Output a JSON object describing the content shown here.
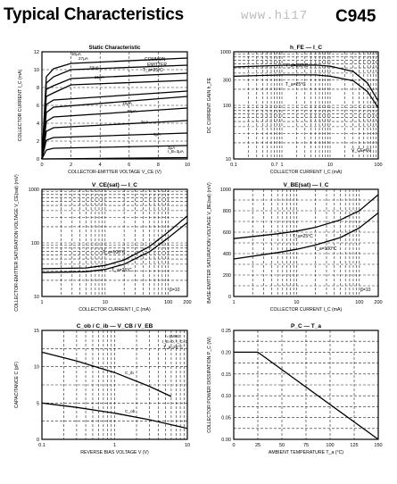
{
  "header": {
    "title": "Typical Characteristics",
    "part": "C945",
    "watermark": "www.hi17"
  },
  "chart_data": [
    {
      "id": "static",
      "type": "line",
      "title": "Static Characteristic",
      "xlabel": "COLLECTOR-EMITTER VOLTAGE  V_CE (V)",
      "ylabel": "COLLECTOR CURRENT  I_C (mA)",
      "xlim": [
        0,
        10
      ],
      "ylim": [
        0,
        12
      ],
      "xscale": "linear",
      "yscale": "linear",
      "xticks": [
        "0",
        "2",
        "4",
        "6",
        "8",
        "10"
      ],
      "yticks": [
        "0",
        "2",
        "4",
        "6",
        "8",
        "10",
        "12"
      ],
      "grid": true,
      "annotations": [
        "COMMON",
        "EMITTER",
        "T_a=25°C"
      ],
      "series": [
        {
          "name": "I_B=0",
          "label": "",
          "values": [
            [
              0,
              0
            ],
            [
              10,
              0.15
            ]
          ]
        },
        {
          "name": "3μA",
          "label": "3μA",
          "values": [
            [
              0,
              0
            ],
            [
              0.3,
              1.0
            ],
            [
              0.8,
              1.2
            ],
            [
              10,
              1.5
            ]
          ]
        },
        {
          "name": "6μA",
          "label": "6μA",
          "values": [
            [
              0,
              0
            ],
            [
              0.3,
              2.1
            ],
            [
              0.8,
              2.4
            ],
            [
              10,
              2.9
            ]
          ]
        },
        {
          "name": "9μA",
          "label": "9μA",
          "values": [
            [
              0,
              0
            ],
            [
              0.3,
              3.1
            ],
            [
              0.8,
              3.5
            ],
            [
              10,
              4.3
            ]
          ]
        },
        {
          "name": "12μA",
          "label": "12μA",
          "values": [
            [
              0,
              0
            ],
            [
              0.3,
              4.2
            ],
            [
              0.8,
              4.7
            ],
            [
              10,
              5.7
            ]
          ]
        },
        {
          "name": "15μA",
          "label": "15μA",
          "values": [
            [
              0,
              0
            ],
            [
              0.3,
              5.2
            ],
            [
              0.8,
              5.8
            ],
            [
              10,
              7.0
            ]
          ]
        },
        {
          "name": "18μA",
          "label": "",
          "values": [
            [
              0,
              0
            ],
            [
              0.3,
              6.1
            ],
            [
              0.8,
              6.6
            ],
            [
              10,
              7.6
            ]
          ]
        },
        {
          "name": "21μA",
          "label": "21μA",
          "values": [
            [
              0,
              0
            ],
            [
              0.3,
              7.0
            ],
            [
              0.8,
              7.4
            ],
            [
              2.0,
              8.3
            ],
            [
              10,
              8.8
            ]
          ]
        },
        {
          "name": "24μA",
          "label": "24μA",
          "values": [
            [
              0,
              0
            ],
            [
              0.3,
              7.8
            ],
            [
              0.8,
              8.2
            ],
            [
              2.0,
              9.0
            ],
            [
              10,
              9.6
            ]
          ]
        },
        {
          "name": "27μA",
          "label": "27μA",
          "values": [
            [
              0,
              0
            ],
            [
              0.3,
              8.5
            ],
            [
              0.8,
              9.2
            ],
            [
              2.0,
              10.0
            ],
            [
              10,
              10.5
            ]
          ]
        },
        {
          "name": "30μA",
          "label": "30μA",
          "values": [
            [
              0,
              0
            ],
            [
              0.3,
              9.2
            ],
            [
              0.8,
              10.1
            ],
            [
              2.0,
              10.7
            ],
            [
              10,
              11.3
            ]
          ]
        }
      ],
      "ib_label": "I_B=3μA"
    },
    {
      "id": "hfe",
      "type": "line",
      "title": "h_FE — I_C",
      "xlabel": "COLLECTOR CURRENT  I_C (mA)",
      "ylabel": "DC CURRENT GAIN  h_FE",
      "xlim": [
        0.1,
        100
      ],
      "ylim": [
        10,
        1000
      ],
      "xscale": "log",
      "yscale": "log",
      "xticks": [
        {
          "v": 0.1,
          "l": "0.1"
        },
        {
          "v": 0.7,
          "l": "0.7"
        },
        {
          "v": 1,
          "l": "1"
        },
        {
          "v": 10,
          "l": "10"
        },
        {
          "v": 100,
          "l": "100"
        }
      ],
      "yticks": [
        {
          "v": 10,
          "l": "10"
        },
        {
          "v": 100,
          "l": "100"
        },
        {
          "v": 300,
          "l": "300"
        },
        {
          "v": 1000,
          "l": "1000"
        }
      ],
      "annotations": [
        "T_a=100°C",
        "T_a=25°C",
        "V_CE=6V"
      ],
      "series": [
        {
          "name": "T_a=100°C",
          "values": [
            [
              0.1,
              520
            ],
            [
              1,
              560
            ],
            [
              5,
              565
            ],
            [
              10,
              540
            ],
            [
              30,
              430
            ],
            [
              60,
              260
            ],
            [
              100,
              120
            ]
          ]
        },
        {
          "name": "T_a=25°C",
          "values": [
            [
              0.1,
              350
            ],
            [
              1,
              370
            ],
            [
              5,
              370
            ],
            [
              10,
              350
            ],
            [
              30,
              290
            ],
            [
              60,
              180
            ],
            [
              100,
              90
            ]
          ]
        }
      ]
    },
    {
      "id": "vcesat",
      "type": "line",
      "title": "V_CE(sat) — I_C",
      "xlabel": "COLLECTOR CURRENT  I_C (mA)",
      "ylabel": "COLLECTOR-EMITTER SATURATION VOLTAGE  V_CE(sat) (mV)",
      "xlim": [
        1,
        200
      ],
      "ylim": [
        10,
        1000
      ],
      "xscale": "log",
      "yscale": "log",
      "xticks": [
        {
          "v": 1,
          "l": "1"
        },
        {
          "v": 10,
          "l": "10"
        },
        {
          "v": 100,
          "l": "100"
        },
        {
          "v": 200,
          "l": "200"
        }
      ],
      "yticks": [
        {
          "v": 10,
          "l": "10"
        },
        {
          "v": 100,
          "l": "100"
        },
        {
          "v": 1000,
          "l": "1000"
        }
      ],
      "annotations": [
        "T_a=100°C",
        "T_a=25°C",
        "β=10"
      ],
      "series": [
        {
          "name": "T_a=100°C",
          "values": [
            [
              1,
              33
            ],
            [
              5,
              34
            ],
            [
              10,
              38
            ],
            [
              20,
              48
            ],
            [
              50,
              85
            ],
            [
              100,
              160
            ],
            [
              200,
              320
            ]
          ]
        },
        {
          "name": "T_a=25°C",
          "values": [
            [
              1,
              28
            ],
            [
              5,
              29
            ],
            [
              10,
              32
            ],
            [
              20,
              40
            ],
            [
              50,
              68
            ],
            [
              100,
              125
            ],
            [
              200,
              240
            ]
          ]
        }
      ]
    },
    {
      "id": "vbesat",
      "type": "line",
      "title": "V_BE(sat) — I_C",
      "xlabel": "COLLECTOR CURRENT  I_C (mA)",
      "ylabel": "BASE-EMITTER SATURATION VOLTAGE  V_BE(sat) (mV)",
      "xlim": [
        1,
        200
      ],
      "ylim": [
        0,
        1000
      ],
      "xscale": "log",
      "yscale": "linear",
      "xticks": [
        {
          "v": 1,
          "l": "1"
        },
        {
          "v": 10,
          "l": "10"
        },
        {
          "v": 100,
          "l": "100"
        },
        {
          "v": 200,
          "l": "200"
        }
      ],
      "yticks": [
        {
          "v": 0,
          "l": "0"
        },
        {
          "v": 200,
          "l": "200"
        },
        {
          "v": 400,
          "l": "400"
        },
        {
          "v": 600,
          "l": "600"
        },
        {
          "v": 800,
          "l": "800"
        },
        {
          "v": 1000,
          "l": "1000"
        }
      ],
      "annotations": [
        "T_a=25°C",
        "T_a=100°C",
        "β=10"
      ],
      "series": [
        {
          "name": "T_a=25°C",
          "values": [
            [
              1,
              540
            ],
            [
              5,
              585
            ],
            [
              10,
              610
            ],
            [
              20,
              645
            ],
            [
              50,
              715
            ],
            [
              100,
              800
            ],
            [
              200,
              950
            ]
          ]
        },
        {
          "name": "T_a=100°C",
          "values": [
            [
              1,
              350
            ],
            [
              5,
              410
            ],
            [
              10,
              440
            ],
            [
              20,
              480
            ],
            [
              50,
              550
            ],
            [
              100,
              640
            ],
            [
              200,
              780
            ]
          ]
        }
      ]
    },
    {
      "id": "cap",
      "type": "line",
      "title": "C_ob / C_ib — V_CB / V_EB",
      "xlabel": "REVERSE BIAS VOLTAGE  V (V)",
      "ylabel": "CAPACITANCE  C (pF)",
      "xlim": [
        0.1,
        10
      ],
      "ylim": [
        0,
        15
      ],
      "xscale": "log",
      "yscale": "linear",
      "xticks": [
        {
          "v": 0.1,
          "l": "0.1"
        },
        {
          "v": 1,
          "l": "1"
        },
        {
          "v": 10,
          "l": "10"
        }
      ],
      "yticks": [
        {
          "v": 0,
          "l": "0"
        },
        {
          "v": 5,
          "l": "5"
        },
        {
          "v": 10,
          "l": "10"
        },
        {
          "v": 15,
          "l": "15"
        }
      ],
      "annotations": [
        "f=1MHz",
        "I_E=0, I_C=0",
        "T_a=25°C"
      ],
      "series": [
        {
          "name": "C_ib",
          "values": [
            [
              0.1,
              12.0
            ],
            [
              0.3,
              10.8
            ],
            [
              1,
              9.2
            ],
            [
              3,
              7.3
            ],
            [
              6,
              5.9
            ]
          ]
        },
        {
          "name": "C_ob",
          "values": [
            [
              0.1,
              5.0
            ],
            [
              0.3,
              4.4
            ],
            [
              1,
              3.6
            ],
            [
              3,
              2.7
            ],
            [
              10,
              1.5
            ]
          ]
        }
      ]
    },
    {
      "id": "pc",
      "type": "line",
      "title": "P_C — T_a",
      "xlabel": "AMBIENT TEMPERATURE  T_a (°C)",
      "ylabel": "COLLECTOR POWER DISSIPATION  P_C (W)",
      "xlim": [
        0,
        150
      ],
      "ylim": [
        0,
        0.25
      ],
      "xscale": "linear",
      "yscale": "linear",
      "xticks": [
        "0",
        "25",
        "50",
        "75",
        "100",
        "125",
        "150"
      ],
      "yticks": [
        "0.00",
        "0.05",
        "0.10",
        "0.15",
        "0.20",
        "0.25"
      ],
      "series": [
        {
          "name": "P_C",
          "values": [
            [
              0,
              0.2
            ],
            [
              25,
              0.2
            ],
            [
              150,
              0
            ]
          ]
        }
      ]
    }
  ]
}
